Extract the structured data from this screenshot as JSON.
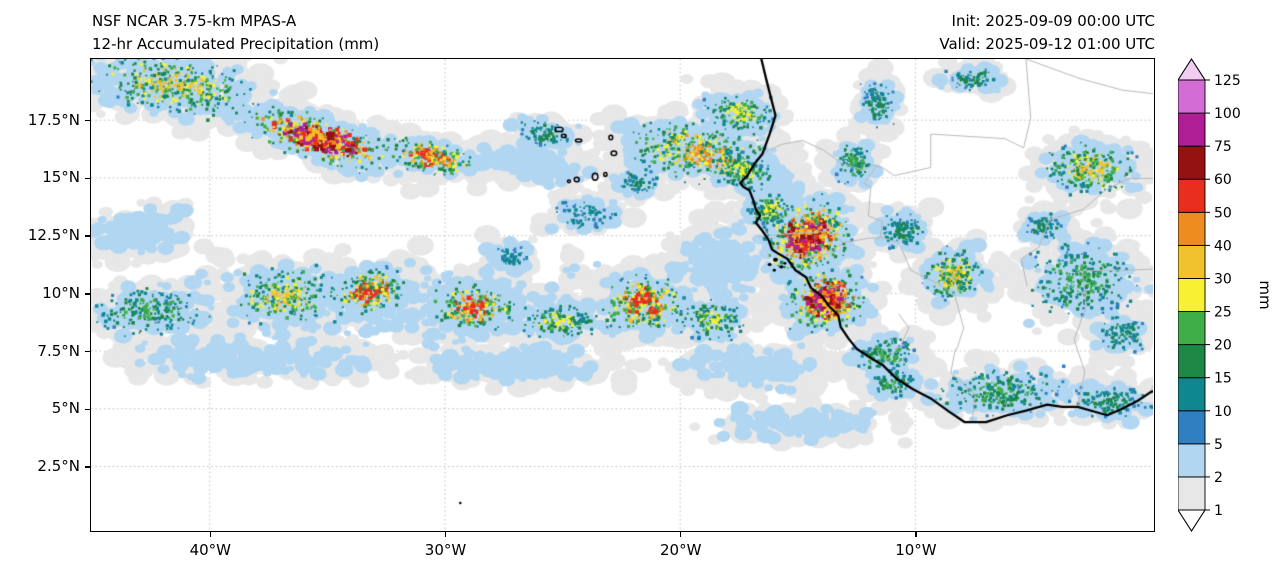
{
  "header": {
    "title_line1": "NSF NCAR 3.75-km MPAS-A",
    "title_line2": "12-hr Accumulated Precipitation (mm)",
    "init_label": "Init: 2025-09-09 00:00 UTC",
    "valid_label": "Valid: 2025-09-12 01:00 UTC"
  },
  "chart_data": {
    "type": "heatmap",
    "title": "12-hr Accumulated Precipitation (mm)",
    "model": "NSF NCAR 3.75-km MPAS-A",
    "init_time": "2025-09-09 00:00 UTC",
    "valid_time": "2025-09-12 01:00 UTC",
    "units": "mm",
    "background": "#ffffff",
    "grid": "dotted-gray",
    "lon_range": [
      -45.05,
      0.1
    ],
    "lat_range": [
      -0.25,
      20.15
    ],
    "x_ticks": [
      {
        "lon": -40,
        "label": "40°W"
      },
      {
        "lon": -30,
        "label": "30°W"
      },
      {
        "lon": -20,
        "label": "20°W"
      },
      {
        "lon": -10,
        "label": "10°W"
      }
    ],
    "y_ticks": [
      {
        "lat": 2.5,
        "label": "2.5°N"
      },
      {
        "lat": 5,
        "label": "5°N"
      },
      {
        "lat": 7.5,
        "label": "7.5°N"
      },
      {
        "lat": 10,
        "label": "10°N"
      },
      {
        "lat": 12.5,
        "label": "12.5°N"
      },
      {
        "lat": 15,
        "label": "15°N"
      },
      {
        "lat": 17.5,
        "label": "17.5°N"
      }
    ],
    "colorbar": {
      "label": "mm",
      "levels": [
        1,
        2,
        5,
        10,
        15,
        20,
        25,
        30,
        40,
        50,
        60,
        75,
        100,
        125
      ],
      "under": "#ffffff",
      "over": "#f3cdf1",
      "colors": [
        "#e7e7e7",
        "#b1d6f2",
        "#2f7fc1",
        "#0f878f",
        "#1d8746",
        "#3fae49",
        "#f8f032",
        "#f2c12e",
        "#ef8c1f",
        "#e92e20",
        "#941211",
        "#b01e95",
        "#d36dd6"
      ]
    },
    "cells_format": [
      "lon",
      "lat",
      "rx_deg",
      "ry_deg",
      "rot_deg",
      "n_points",
      "max_level_index"
    ],
    "cells": [
      [
        -38.0,
        7.1,
        5.5,
        0.9,
        0,
        170,
        1
      ],
      [
        -27.0,
        6.9,
        4.0,
        0.8,
        0,
        140,
        1
      ],
      [
        -17.0,
        6.8,
        3.2,
        1.0,
        0,
        120,
        2
      ],
      [
        -15.0,
        4.4,
        4.0,
        0.8,
        0,
        110,
        1
      ],
      [
        -43.0,
        12.6,
        2.2,
        1.1,
        10,
        90,
        2
      ],
      [
        -26.5,
        15.6,
        3.0,
        0.9,
        -8,
        110,
        2
      ],
      [
        -15.8,
        14.2,
        0.9,
        1.5,
        0,
        100,
        2
      ],
      [
        -18.3,
        11.3,
        2.2,
        1.8,
        0,
        140,
        2
      ],
      [
        -31.0,
        9.4,
        11.0,
        2.0,
        2,
        240,
        2
      ],
      [
        -24.0,
        13.4,
        1.6,
        0.8,
        0,
        70,
        3
      ],
      [
        -27.2,
        11.6,
        1.1,
        0.7,
        0,
        55,
        3
      ],
      [
        -41.5,
        19.0,
        4.2,
        1.5,
        -8,
        400,
        7
      ],
      [
        -35.3,
        16.7,
        3.8,
        1.1,
        -17,
        500,
        11
      ],
      [
        -30.6,
        15.9,
        2.2,
        0.8,
        -12,
        220,
        9
      ],
      [
        -19.2,
        16.1,
        3.6,
        1.4,
        -8,
        460,
        8
      ],
      [
        -17.5,
        17.8,
        1.8,
        1.0,
        -10,
        170,
        6
      ],
      [
        -17.3,
        15.3,
        1.5,
        0.9,
        -20,
        150,
        6
      ],
      [
        -12.6,
        15.7,
        0.9,
        1.0,
        0,
        110,
        5
      ],
      [
        -14.6,
        12.4,
        2.1,
        1.7,
        25,
        500,
        11
      ],
      [
        -13.8,
        9.7,
        1.9,
        1.5,
        10,
        400,
        11
      ],
      [
        -16.2,
        13.6,
        1.1,
        0.9,
        0,
        140,
        6
      ],
      [
        -42.5,
        9.2,
        2.8,
        1.2,
        4,
        200,
        5
      ],
      [
        -36.8,
        9.9,
        2.6,
        1.4,
        0,
        280,
        7
      ],
      [
        -33.2,
        10.1,
        1.8,
        1.1,
        8,
        260,
        9
      ],
      [
        -28.8,
        9.4,
        2.0,
        1.2,
        0,
        260,
        9
      ],
      [
        -25.2,
        8.8,
        1.8,
        0.9,
        0,
        160,
        6
      ],
      [
        -21.6,
        9.6,
        2.2,
        1.5,
        5,
        320,
        9
      ],
      [
        -18.6,
        8.8,
        1.5,
        1.0,
        0,
        150,
        6
      ],
      [
        -6.3,
        5.7,
        3.2,
        1.1,
        3,
        240,
        5
      ],
      [
        -1.6,
        5.3,
        2.0,
        0.9,
        0,
        130,
        4
      ],
      [
        -10.9,
        6.1,
        1.1,
        0.7,
        0,
        80,
        5
      ],
      [
        -11.3,
        7.3,
        1.6,
        1.0,
        0,
        140,
        5
      ],
      [
        -2.9,
        10.6,
        2.6,
        1.9,
        0,
        280,
        5
      ],
      [
        -8.4,
        10.8,
        1.5,
        1.3,
        0,
        220,
        7
      ],
      [
        -10.6,
        12.7,
        1.1,
        0.9,
        0,
        120,
        4
      ],
      [
        -2.6,
        15.4,
        2.2,
        1.3,
        -5,
        280,
        7
      ],
      [
        -11.6,
        18.2,
        0.8,
        1.1,
        0,
        110,
        4
      ],
      [
        -7.6,
        19.3,
        1.3,
        0.6,
        0,
        70,
        4
      ],
      [
        -4.5,
        12.9,
        0.9,
        0.7,
        0,
        70,
        4
      ],
      [
        -21.8,
        14.8,
        1.0,
        0.6,
        0,
        60,
        4
      ],
      [
        -25.8,
        16.9,
        1.5,
        0.7,
        -10,
        80,
        4
      ],
      [
        -1.2,
        8.2,
        1.2,
        0.9,
        0,
        90,
        4
      ]
    ]
  },
  "geography": {
    "coastline": [
      [
        -16.55,
        20.15
      ],
      [
        -16.35,
        19.3
      ],
      [
        -16.15,
        18.5
      ],
      [
        -15.95,
        17.7
      ],
      [
        -16.2,
        16.9
      ],
      [
        -16.5,
        16.05
      ],
      [
        -16.85,
        15.6
      ],
      [
        -17.15,
        15.1
      ],
      [
        -17.45,
        14.78
      ],
      [
        -17.32,
        14.62
      ],
      [
        -17.05,
        14.45
      ],
      [
        -16.9,
        14.05
      ],
      [
        -16.78,
        13.62
      ],
      [
        -16.6,
        13.36
      ],
      [
        -16.78,
        13.06
      ],
      [
        -16.5,
        12.7
      ],
      [
        -16.25,
        12.33
      ],
      [
        -16.1,
        11.9
      ],
      [
        -15.8,
        11.7
      ],
      [
        -15.45,
        11.5
      ],
      [
        -15.1,
        11.0
      ],
      [
        -14.65,
        10.7
      ],
      [
        -14.45,
        10.25
      ],
      [
        -13.95,
        9.85
      ],
      [
        -13.68,
        9.45
      ],
      [
        -13.28,
        9.05
      ],
      [
        -13.18,
        8.55
      ],
      [
        -12.85,
        8.05
      ],
      [
        -12.5,
        7.6
      ],
      [
        -11.9,
        7.2
      ],
      [
        -11.4,
        6.9
      ],
      [
        -10.8,
        6.3
      ],
      [
        -10.1,
        5.85
      ],
      [
        -9.35,
        5.45
      ],
      [
        -8.6,
        4.9
      ],
      [
        -7.9,
        4.42
      ],
      [
        -7.0,
        4.42
      ],
      [
        -6.1,
        4.72
      ],
      [
        -5.3,
        4.92
      ],
      [
        -4.4,
        5.18
      ],
      [
        -3.75,
        5.08
      ],
      [
        -3.1,
        5.08
      ],
      [
        -2.3,
        4.85
      ],
      [
        -1.85,
        4.72
      ],
      [
        -1.2,
        5.0
      ],
      [
        -0.55,
        5.35
      ],
      [
        0.0,
        5.72
      ],
      [
        0.45,
        5.92
      ]
    ],
    "islands_filled": [
      [
        -15.95,
        11.45,
        2.5,
        2.0
      ],
      [
        -16.2,
        11.25,
        2.0,
        1.6
      ],
      [
        -15.7,
        11.15,
        2.2,
        1.6
      ],
      [
        -16.0,
        11.0,
        1.6,
        1.4
      ],
      [
        -15.55,
        11.3,
        1.5,
        1.3
      ],
      [
        -29.35,
        0.92,
        1.3,
        1.3
      ]
    ],
    "islands_outline": [
      [
        -25.15,
        17.1,
        4.0,
        2.2
      ],
      [
        -24.95,
        16.82,
        2.4,
        1.7
      ],
      [
        -24.32,
        16.62,
        3.2,
        1.5
      ],
      [
        -22.95,
        16.75,
        1.9,
        2.3
      ],
      [
        -22.82,
        16.07,
        2.8,
        2.3
      ],
      [
        -23.62,
        15.05,
        2.8,
        3.4
      ],
      [
        -23.18,
        15.15,
        1.6,
        1.9
      ],
      [
        -24.4,
        14.93,
        2.5,
        2.3
      ],
      [
        -24.73,
        14.85,
        1.5,
        1.3
      ]
    ],
    "borders": [
      [
        [
          -16.5,
          16.05
        ],
        [
          -15.7,
          16.45
        ],
        [
          -14.8,
          16.62
        ],
        [
          -13.9,
          16.2
        ],
        [
          -13.1,
          15.6
        ],
        [
          -12.2,
          15.35
        ],
        [
          -11.8,
          15.55
        ],
        [
          -11.4,
          15.45
        ]
      ],
      [
        [
          -11.4,
          15.45
        ],
        [
          -10.9,
          15.1
        ],
        [
          -9.35,
          15.45
        ],
        [
          -9.35,
          16.9
        ],
        [
          -6.2,
          16.7
        ],
        [
          -5.4,
          16.3
        ],
        [
          -5.1,
          17.6
        ],
        [
          -5.3,
          20.15
        ]
      ],
      [
        [
          -5.3,
          20.15
        ],
        [
          -3.0,
          19.3
        ],
        [
          -1.2,
          18.8
        ],
        [
          0.1,
          18.65
        ]
      ],
      [
        [
          -16.7,
          12.45
        ],
        [
          -15.2,
          12.6
        ],
        [
          -13.7,
          12.68
        ],
        [
          -13.06,
          12.2
        ],
        [
          -11.9,
          12.4
        ],
        [
          -11.4,
          12.4
        ],
        [
          -10.7,
          12.2
        ]
      ],
      [
        [
          -10.7,
          12.2
        ],
        [
          -10.2,
          11.0
        ],
        [
          -9.2,
          10.5
        ],
        [
          -8.35,
          10.0
        ],
        [
          -7.95,
          8.5
        ],
        [
          -8.25,
          7.55
        ]
      ],
      [
        [
          -11.4,
          6.9
        ],
        [
          -10.6,
          7.8
        ],
        [
          -10.28,
          8.5
        ],
        [
          -10.7,
          9.1
        ]
      ],
      [
        [
          -7.6,
          4.4
        ],
        [
          -7.45,
          5.6
        ],
        [
          -8.5,
          6.55
        ],
        [
          -8.3,
          7.6
        ]
      ],
      [
        [
          -3.1,
          5.1
        ],
        [
          -2.8,
          6.6
        ],
        [
          -3.25,
          8.0
        ],
        [
          -2.75,
          9.4
        ],
        [
          -2.9,
          10.98
        ]
      ],
      [
        [
          -2.9,
          10.98
        ],
        [
          -1.0,
          11.0
        ],
        [
          0.1,
          11.05
        ]
      ],
      [
        [
          0.0,
          5.75
        ],
        [
          0.35,
          6.6
        ],
        [
          0.55,
          8.2
        ]
      ],
      [
        [
          -5.25,
          10.3
        ],
        [
          -5.5,
          11.5
        ],
        [
          -4.75,
          12.0
        ],
        [
          -4.3,
          13.2
        ],
        [
          -3.6,
          13.4
        ],
        [
          -2.85,
          13.65
        ],
        [
          -1.9,
          14.48
        ],
        [
          -0.95,
          14.97
        ],
        [
          0.1,
          14.98
        ]
      ],
      [
        [
          -11.5,
          12.4
        ],
        [
          -11.4,
          13.1
        ],
        [
          -12.0,
          13.35
        ],
        [
          -11.9,
          14.6
        ],
        [
          -12.2,
          14.77
        ],
        [
          -11.65,
          15.5
        ]
      ],
      [
        [
          -13.06,
          12.2
        ],
        [
          -13.7,
          11.7
        ],
        [
          -14.3,
          11.63
        ],
        [
          -14.7,
          11.5
        ]
      ]
    ]
  }
}
